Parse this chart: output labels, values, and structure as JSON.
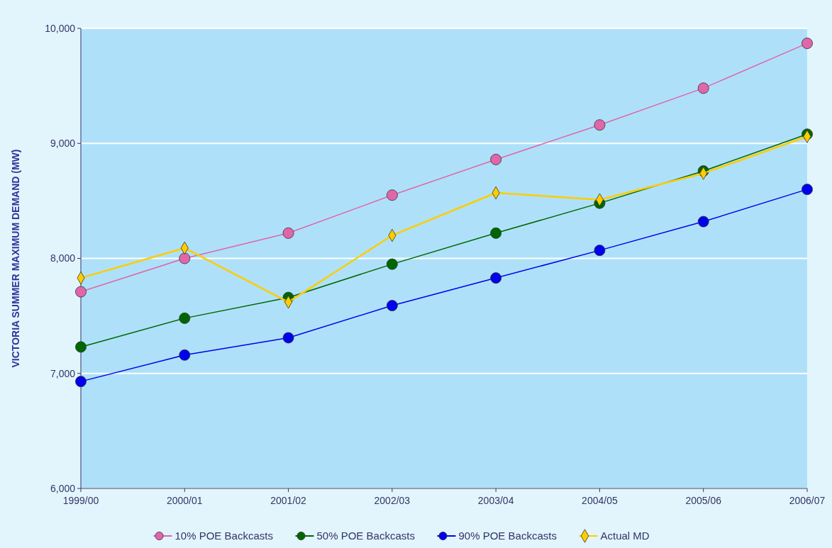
{
  "chart_data": {
    "type": "line",
    "ylabel": "VICTORIA SUMMER MAXIMUM DEMAND (MW)",
    "categories": [
      "1999/00",
      "2000/01",
      "2001/02",
      "2002/03",
      "2003/04",
      "2004/05",
      "2005/06",
      "2006/07"
    ],
    "series": [
      {
        "name": "10% POE Backcasts",
        "color": "#e066aa",
        "marker": "circle",
        "values": [
          7710,
          8000,
          8220,
          8550,
          8860,
          9160,
          9480,
          9870
        ]
      },
      {
        "name": "50% POE Backcasts",
        "color": "#006600",
        "marker": "circle",
        "values": [
          7230,
          7480,
          7660,
          7950,
          8220,
          8480,
          8760,
          9080
        ]
      },
      {
        "name": "90% POE Backcasts",
        "color": "#0000ee",
        "marker": "circle",
        "values": [
          6930,
          7160,
          7310,
          7590,
          7830,
          8070,
          8320,
          8600
        ]
      },
      {
        "name": "Actual MD",
        "color": "#ffcc00",
        "marker": "diamond",
        "values": [
          7830,
          8090,
          7620,
          8200,
          8570,
          8510,
          8740,
          9060
        ]
      }
    ],
    "ylim": [
      6000,
      10000
    ],
    "yticks": [
      {
        "value": 6000,
        "label": "6,000"
      },
      {
        "value": 7000,
        "label": "7,000"
      },
      {
        "value": 8000,
        "label": "8,000"
      },
      {
        "value": 9000,
        "label": "9,000"
      },
      {
        "value": 10000,
        "label": "10,000"
      }
    ],
    "grid": "y",
    "legend": "bottom"
  }
}
